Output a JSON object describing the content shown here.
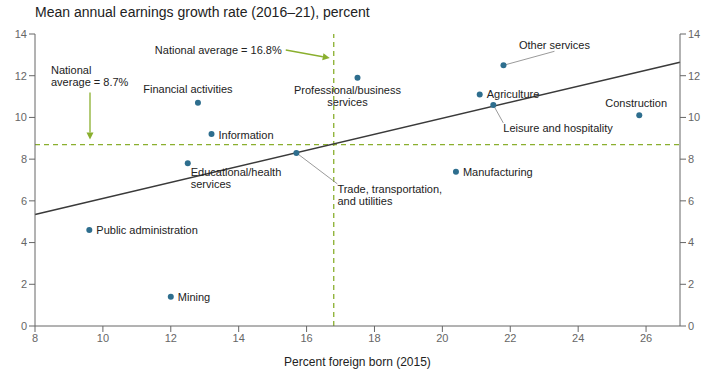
{
  "chart_data": {
    "type": "scatter",
    "title": "Mean annual earnings growth rate (2016–21), percent",
    "xlabel": "Percent foreign born (2015)",
    "xlim": [
      8,
      27
    ],
    "ylim": [
      0,
      14
    ],
    "xticks": [
      8,
      10,
      12,
      14,
      16,
      18,
      20,
      22,
      24,
      26
    ],
    "yticks": [
      0,
      2,
      4,
      6,
      8,
      10,
      12,
      14
    ],
    "y2lim": [
      0,
      14
    ],
    "y2ticks": [
      0,
      2,
      4,
      6,
      8,
      10,
      12,
      14
    ],
    "color": "#2e6e8e",
    "points": [
      {
        "label": "Public administration",
        "x": 9.6,
        "y": 4.6
      },
      {
        "label": "Financial activities",
        "x": 12.8,
        "y": 10.7
      },
      {
        "label": "Information",
        "x": 13.2,
        "y": 9.2
      },
      {
        "label": "Educational/health\nservices",
        "x": 12.5,
        "y": 7.8
      },
      {
        "label": "Mining",
        "x": 12.0,
        "y": 1.4
      },
      {
        "label": "Trade, transportation,\nand utilities",
        "x": 15.7,
        "y": 8.3
      },
      {
        "label": "Professional/business\nservices",
        "x": 17.5,
        "y": 11.9
      },
      {
        "label": "Manufacturing",
        "x": 20.4,
        "y": 7.4
      },
      {
        "label": "Agriculture",
        "x": 21.1,
        "y": 11.1
      },
      {
        "label": "Leisure and hospitality",
        "x": 21.5,
        "y": 10.6
      },
      {
        "label": "Other services",
        "x": 21.8,
        "y": 12.5
      },
      {
        "label": "Construction",
        "x": 25.8,
        "y": 10.1
      }
    ],
    "trendline": {
      "x": [
        8.0,
        27.0
      ],
      "y": [
        5.35,
        12.65
      ],
      "color": "#3a3a3a"
    },
    "reference_lines": [
      {
        "axis": "x",
        "value": 16.8,
        "color": "#8aaf2e",
        "label": "National average = 16.8%"
      },
      {
        "axis": "y",
        "value": 8.7,
        "color": "#8aaf2e",
        "label": "National\naverage = 8.7%"
      }
    ]
  }
}
